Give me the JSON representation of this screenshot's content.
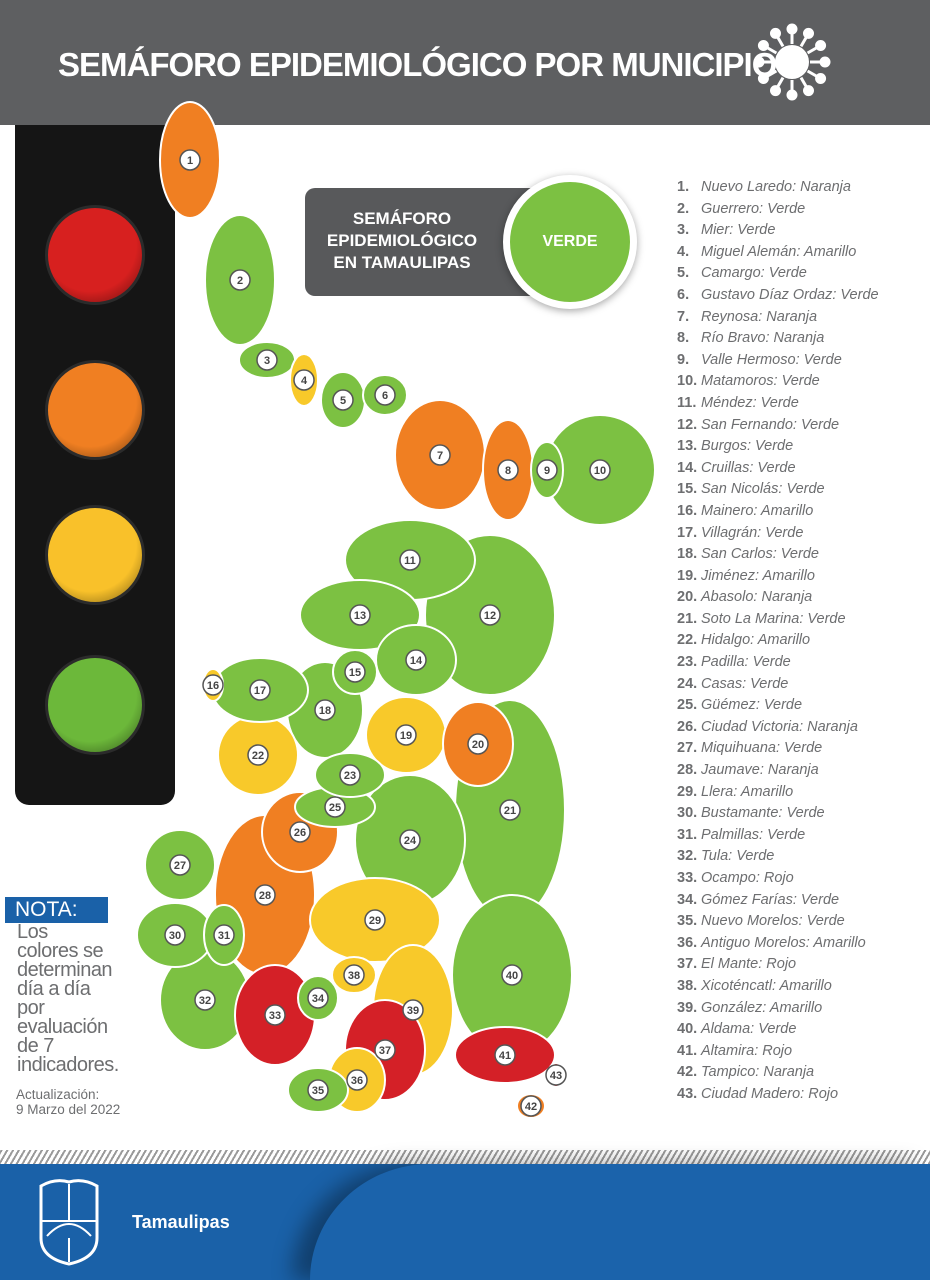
{
  "header": {
    "title": "SEMÁFORO EPIDEMIOLÓGICO POR MUNICIPIO",
    "icon": "virus-icon"
  },
  "state_status": {
    "label": "SEMÁFORO EPIDEMIOLÓGICO EN TAMAULIPAS",
    "value": "VERDE",
    "color": "#7cc142"
  },
  "traffic_light": {
    "colors": [
      "#d7201f",
      "#f07f22",
      "#f9c12a",
      "#6cb83a"
    ]
  },
  "status_colors": {
    "Verde": "#7cc142",
    "Naranja": "#f07f22",
    "Amarillo": "#f8c92a",
    "Rojo": "#d42027"
  },
  "municipalities": [
    {
      "n": "1.",
      "name": "Nuevo Laredo",
      "status": "Naranja"
    },
    {
      "n": "2.",
      "name": "Guerrero",
      "status": "Verde"
    },
    {
      "n": "3.",
      "name": "Mier",
      "status": "Verde"
    },
    {
      "n": "4.",
      "name": "Miguel Alemán",
      "status": "Amarillo"
    },
    {
      "n": "5.",
      "name": "Camargo",
      "status": "Verde"
    },
    {
      "n": "6.",
      "name": "Gustavo Díaz Ordaz",
      "status": "Verde"
    },
    {
      "n": "7.",
      "name": "Reynosa",
      "status": "Naranja"
    },
    {
      "n": "8.",
      "name": "Río Bravo",
      "status": "Naranja"
    },
    {
      "n": "9.",
      "name": "Valle Hermoso",
      "status": "Verde"
    },
    {
      "n": "10.",
      "name": "Matamoros",
      "status": "Verde"
    },
    {
      "n": "11.",
      "name": "Méndez",
      "status": "Verde"
    },
    {
      "n": "12.",
      "name": "San Fernando",
      "status": "Verde"
    },
    {
      "n": "13.",
      "name": "Burgos",
      "status": "Verde"
    },
    {
      "n": "14.",
      "name": "Cruillas",
      "status": "Verde"
    },
    {
      "n": "15.",
      "name": "San Nicolás",
      "status": "Verde"
    },
    {
      "n": "16.",
      "name": "Mainero",
      "status": "Amarillo"
    },
    {
      "n": "17.",
      "name": "Villagrán",
      "status": "Verde"
    },
    {
      "n": "18.",
      "name": "San Carlos",
      "status": "Verde"
    },
    {
      "n": "19.",
      "name": "Jiménez",
      "status": "Amarillo"
    },
    {
      "n": "20.",
      "name": "Abasolo",
      "status": "Naranja"
    },
    {
      "n": "21.",
      "name": "Soto La Marina",
      "status": "Verde"
    },
    {
      "n": "22.",
      "name": "Hidalgo",
      "status": "Amarillo"
    },
    {
      "n": "23.",
      "name": "Padilla",
      "status": "Verde"
    },
    {
      "n": "24.",
      "name": "Casas",
      "status": "Verde"
    },
    {
      "n": "25.",
      "name": "Güémez",
      "status": "Verde"
    },
    {
      "n": "26.",
      "name": "Ciudad Victoria",
      "status": "Naranja"
    },
    {
      "n": "27.",
      "name": "Miquihuana",
      "status": "Verde"
    },
    {
      "n": "28.",
      "name": "Jaumave",
      "status": "Naranja"
    },
    {
      "n": "29.",
      "name": "Llera",
      "status": "Amarillo"
    },
    {
      "n": "30.",
      "name": "Bustamante",
      "status": "Verde"
    },
    {
      "n": "31.",
      "name": "Palmillas",
      "status": "Verde"
    },
    {
      "n": "32.",
      "name": "Tula",
      "status": "Verde"
    },
    {
      "n": "33.",
      "name": "Ocampo",
      "status": "Rojo"
    },
    {
      "n": "34.",
      "name": "Gómez Farías",
      "status": "Verde"
    },
    {
      "n": "35.",
      "name": "Nuevo Morelos",
      "status": "Verde"
    },
    {
      "n": "36.",
      "name": "Antiguo Morelos",
      "status": "Amarillo"
    },
    {
      "n": "37.",
      "name": "El Mante",
      "status": "Rojo"
    },
    {
      "n": "38.",
      "name": "Xicoténcatl",
      "status": "Amarillo"
    },
    {
      "n": "39.",
      "name": "González",
      "status": "Amarillo"
    },
    {
      "n": "40.",
      "name": "Aldama",
      "status": "Verde"
    },
    {
      "n": "41.",
      "name": "Altamira",
      "status": "Rojo"
    },
    {
      "n": "42.",
      "name": "Tampico",
      "status": "Naranja"
    },
    {
      "n": "43.",
      "name": "Ciudad Madero",
      "status": "Rojo"
    }
  ],
  "note": {
    "label": "NOTA:",
    "text": "Los colores se determinan día a día por evaluación de 7 indicadores."
  },
  "update": {
    "label": "Actualización:",
    "date": "9 Marzo del 2022"
  },
  "footer": {
    "brand": "Tamaulipas",
    "logo_text": "Escudo de Tamaulipas"
  }
}
